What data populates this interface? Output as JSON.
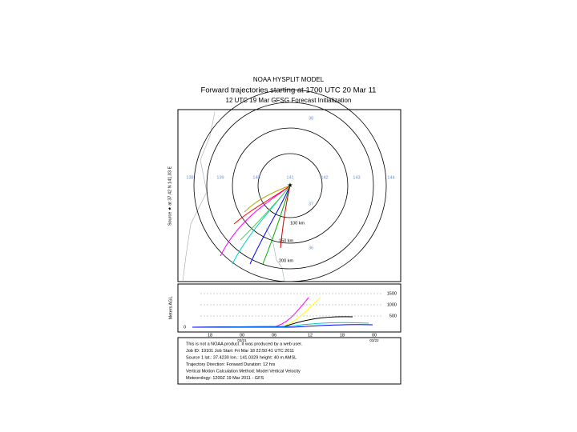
{
  "header": {
    "title": "NOAA HYSPLIT MODEL",
    "subtitle": "Forward trajectories starting at 1700 UTC 20 Mar 11",
    "init": "12 UTC 19 Mar    GFSG  Forecast Initialization"
  },
  "map": {
    "source_label": "Source ★ at  37.42 N  141.03 E",
    "lon_labels": [
      "138",
      "139",
      "140",
      "141",
      "142",
      "143",
      "144"
    ],
    "lat_labels": [
      "38",
      "37",
      "36"
    ],
    "rings": [
      "100 km",
      "150 km",
      "200 km"
    ]
  },
  "height_panel": {
    "axis_label": "Meters AGL",
    "ticks": [
      "1500",
      "1000",
      "500",
      "0"
    ],
    "time_labels": [
      "18",
      "00",
      "06",
      "12",
      "18",
      "00"
    ],
    "date_labels": [
      "03/21",
      "03/22"
    ]
  },
  "info": [
    "This is not a NOAA product. It was produced by a web user.",
    "Job ID: 19101        Job Start: Fri Mar 18 22:50:41 UTC 2011",
    "Source 1    lat.: 37.4230    lon.: 141.0329    height: 40 m AMSL",
    "Trajectory Direction: Forward      Duration: 12 hrs",
    "Vertical Motion Calculation Method:      Model Vertical Velocity",
    "Meteorology: 1200Z 19 Mar 2011 - GFS"
  ]
}
